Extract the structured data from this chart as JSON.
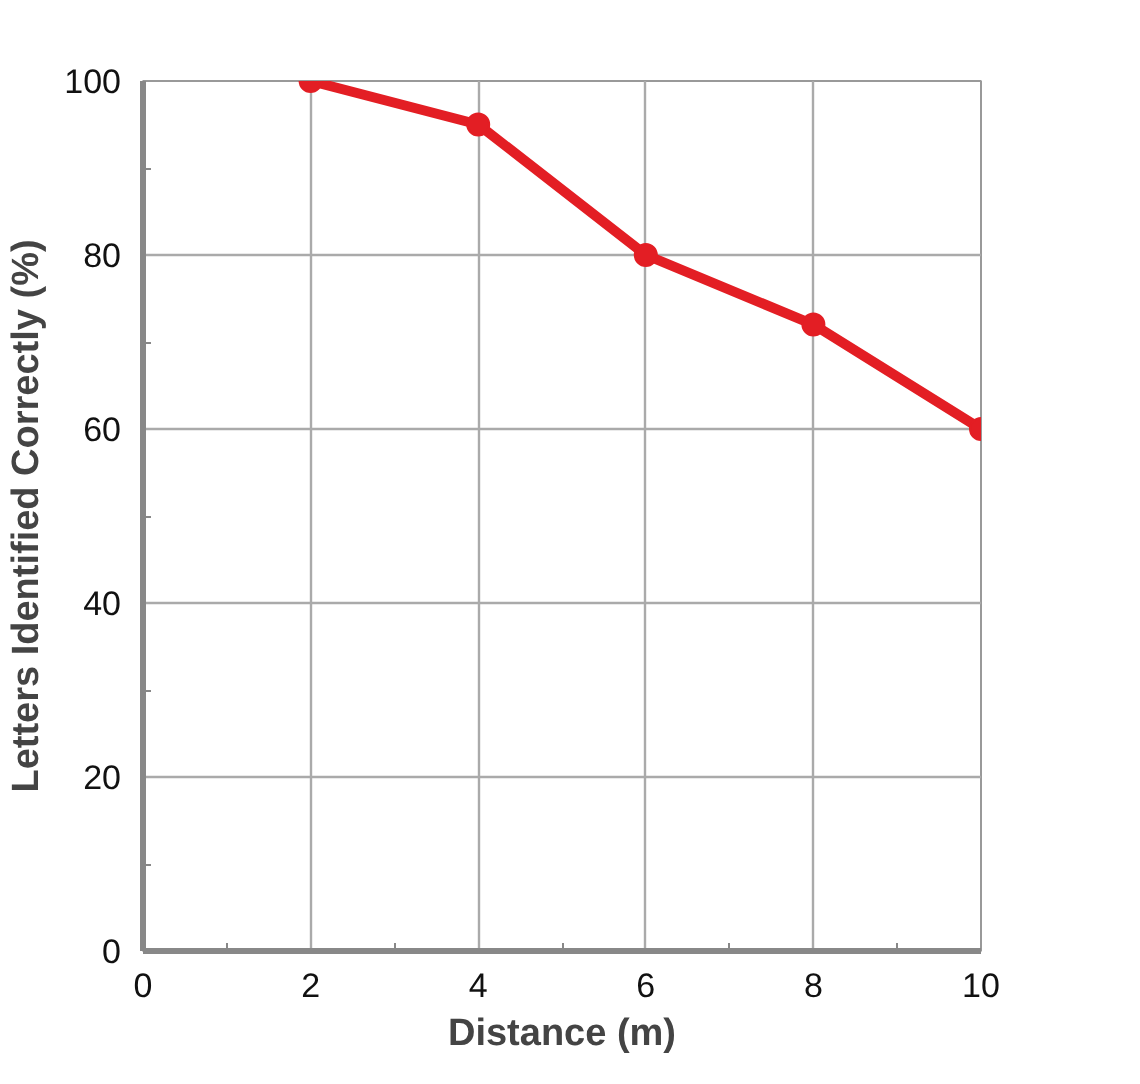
{
  "chart_data": {
    "type": "line",
    "xlabel": "Distance (m)",
    "ylabel": "Letters Identified Correctly (%)",
    "x": [
      2,
      4,
      6,
      8,
      10
    ],
    "series": [
      {
        "color": "#e31e24",
        "values": [
          100,
          95,
          80,
          72,
          60
        ]
      }
    ],
    "xlim": [
      0,
      10
    ],
    "ylim": [
      0,
      100
    ],
    "xticks": [
      0,
      2,
      4,
      6,
      8,
      10
    ],
    "yticks": [
      0,
      20,
      40,
      60,
      80,
      100
    ],
    "grid": true,
    "marker": "circle",
    "line_style": "solid"
  }
}
